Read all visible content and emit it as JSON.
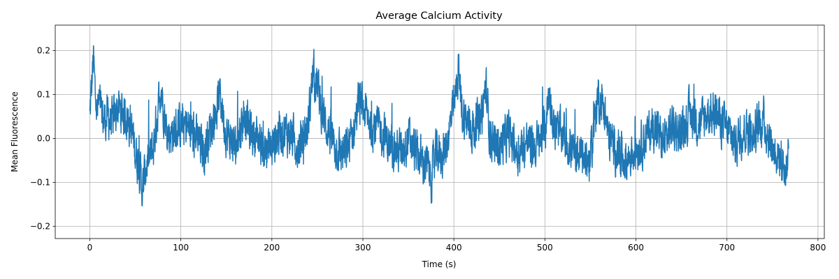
{
  "chart_data": {
    "type": "line",
    "title": "Average Calcium Activity",
    "xlabel": "Time (s)",
    "ylabel": "Mean Fluorescence",
    "xlim": [
      -38,
      807
    ],
    "ylim": [
      -0.228,
      0.258
    ],
    "xticks": [
      0,
      100,
      200,
      300,
      400,
      500,
      600,
      700,
      800
    ],
    "yticks": [
      -0.2,
      -0.1,
      0.0,
      0.1,
      0.2
    ],
    "xtick_labels": [
      "0",
      "100",
      "200",
      "300",
      "400",
      "500",
      "600",
      "700",
      "800"
    ],
    "ytick_labels": [
      "−0.2",
      "−0.1",
      "0.0",
      "0.1",
      "0.2"
    ],
    "grid": true,
    "legend": "none",
    "series": [
      {
        "color": "#1f77b4",
        "x": [
          0,
          2,
          4,
          6,
          8,
          10,
          15,
          20,
          25,
          30,
          35,
          40,
          45,
          50,
          55,
          58,
          62,
          65,
          70,
          75,
          78,
          85,
          95,
          100,
          110,
          120,
          125,
          135,
          143,
          150,
          160,
          170,
          175,
          185,
          195,
          200,
          210,
          220,
          230,
          240,
          245,
          250,
          255,
          260,
          270,
          280,
          290,
          295,
          300,
          310,
          320,
          330,
          340,
          350,
          360,
          370,
          375,
          380,
          390,
          400,
          405,
          410,
          420,
          430,
          435,
          440,
          450,
          460,
          470,
          480,
          490,
          500,
          505,
          510,
          520,
          530,
          540,
          550,
          558,
          565,
          570,
          580,
          590,
          600,
          610,
          620,
          630,
          640,
          650,
          660,
          670,
          680,
          690,
          700,
          710,
          720,
          730,
          740,
          750,
          760,
          765,
          768
        ],
        "y": [
          0.05,
          0.12,
          0.18,
          0.1,
          0.06,
          0.08,
          0.04,
          0.05,
          0.03,
          0.07,
          0.06,
          0.05,
          0.03,
          -0.03,
          -0.07,
          -0.12,
          -0.06,
          -0.05,
          -0.02,
          0.07,
          0.12,
          0.01,
          0.02,
          0.03,
          0.02,
          -0.01,
          -0.03,
          0.04,
          0.1,
          0.01,
          -0.02,
          0.06,
          0.02,
          0.0,
          -0.03,
          -0.02,
          0.02,
          0.01,
          -0.02,
          0.03,
          0.15,
          0.12,
          0.06,
          0.03,
          -0.02,
          -0.04,
          0.02,
          0.08,
          0.07,
          0.03,
          0.02,
          -0.02,
          -0.03,
          0.0,
          -0.04,
          -0.06,
          -0.09,
          -0.04,
          -0.03,
          0.07,
          0.15,
          0.05,
          0.02,
          0.04,
          0.12,
          0.0,
          -0.02,
          0.01,
          -0.03,
          -0.01,
          -0.02,
          0.02,
          0.11,
          0.02,
          0.01,
          -0.03,
          -0.04,
          -0.05,
          0.1,
          0.07,
          0.0,
          -0.03,
          -0.05,
          -0.02,
          0.0,
          0.03,
          -0.01,
          0.03,
          0.01,
          0.06,
          0.03,
          0.06,
          0.05,
          0.02,
          -0.01,
          0.02,
          0.01,
          0.04,
          -0.02,
          -0.05,
          -0.08,
          0.0
        ]
      }
    ]
  }
}
